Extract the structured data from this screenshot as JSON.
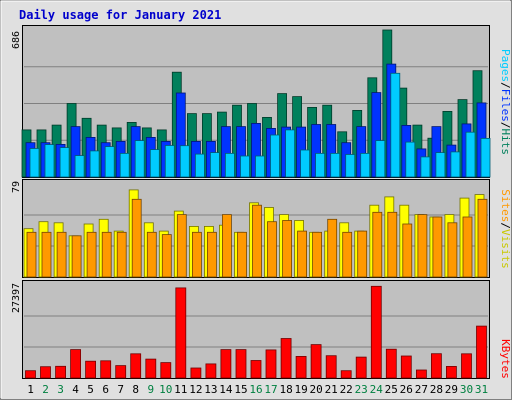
{
  "chart_data": [
    {
      "type": "bar",
      "title": "Daily usage for January 2021",
      "categories": [
        "1",
        "2",
        "3",
        "4",
        "5",
        "6",
        "7",
        "8",
        "9",
        "10",
        "11",
        "12",
        "13",
        "14",
        "15",
        "16",
        "17",
        "18",
        "19",
        "20",
        "21",
        "22",
        "23",
        "24",
        "25",
        "26",
        "27",
        "28",
        "29",
        "30",
        "31"
      ],
      "weekend_days": [
        "2",
        "3",
        "9",
        "10",
        "16",
        "17",
        "23",
        "24",
        "30",
        "31"
      ],
      "ymax": 686,
      "series": [
        {
          "name": "Hits",
          "color": "#00805c",
          "values": [
            220,
            220,
            242,
            343,
            274,
            242,
            229,
            255,
            229,
            220,
            489,
            296,
            296,
            303,
            335,
            343,
            278,
            389,
            375,
            325,
            335,
            211,
            311,
            463,
            686,
            415,
            242,
            181,
            306,
            361,
            496
          ]
        },
        {
          "name": "Files",
          "color": "#0033ff",
          "values": [
            160,
            160,
            152,
            235,
            185,
            160,
            166,
            235,
            185,
            166,
            392,
            166,
            166,
            235,
            235,
            250,
            227,
            233,
            233,
            245,
            245,
            160,
            235,
            394,
            527,
            241,
            131,
            235,
            149,
            248,
            346
          ]
        },
        {
          "name": "Pages",
          "color": "#00ccff",
          "values": [
            133,
            151,
            137,
            100,
            122,
            142,
            110,
            170,
            128,
            147,
            146,
            107,
            114,
            110,
            98,
            98,
            196,
            220,
            126,
            110,
            110,
            105,
            110,
            170,
            484,
            163,
            94,
            114,
            117,
            209,
            180
          ]
        }
      ]
    },
    {
      "type": "bar",
      "ymax": 79,
      "series": [
        {
          "name": "Visits",
          "color": "#ffff00",
          "values": [
            41,
            47,
            46,
            35,
            45,
            49,
            39,
            74,
            46,
            39,
            56,
            43,
            43,
            44,
            38,
            63,
            59,
            53,
            48,
            38,
            39,
            46,
            39,
            61,
            68,
            61,
            53,
            51,
            53,
            67,
            70
          ]
        },
        {
          "name": "Sites",
          "color": "#ff9900",
          "values": [
            38,
            38,
            38,
            35,
            38,
            38,
            38,
            66,
            38,
            36,
            53,
            38,
            38,
            53,
            38,
            61,
            47,
            48,
            39,
            38,
            49,
            38,
            39,
            55,
            55,
            45,
            53,
            51,
            46,
            51,
            66
          ]
        }
      ]
    },
    {
      "type": "bar",
      "ymax": 27397,
      "series": [
        {
          "name": "KBytes",
          "color": "#ff0000",
          "values": [
            2150,
            3340,
            3440,
            8370,
            4950,
            5060,
            3650,
            7120,
            5570,
            4550,
            26550,
            2950,
            4140,
            8370,
            8370,
            5160,
            8270,
            11640,
            6360,
            9830,
            6580,
            2150,
            6160,
            27000,
            8470,
            6470,
            2370,
            7170,
            3430,
            7120,
            15300
          ]
        }
      ]
    }
  ],
  "legend_top": [
    {
      "text": "Pages",
      "color": "#00ccff"
    },
    {
      "text": "/",
      "color": "#000000"
    },
    {
      "text": "Files",
      "color": "#0033ff"
    },
    {
      "text": "/",
      "color": "#000000"
    },
    {
      "text": "Hits",
      "color": "#00805c"
    }
  ],
  "legend_mid": [
    {
      "text": "Sites",
      "color": "#ff9900"
    },
    {
      "text": "/",
      "color": "#000000"
    },
    {
      "text": "Visits",
      "color": "#c8c800"
    }
  ],
  "legend_bot": [
    {
      "text": "KBytes",
      "color": "#ff0000"
    }
  ],
  "colors": {
    "title": "#0000cc",
    "panel_bg": "#c0c0c0",
    "frame_bg": "#e0e0e0",
    "weekday_label": "#000000",
    "weekend_label": "#008040"
  }
}
